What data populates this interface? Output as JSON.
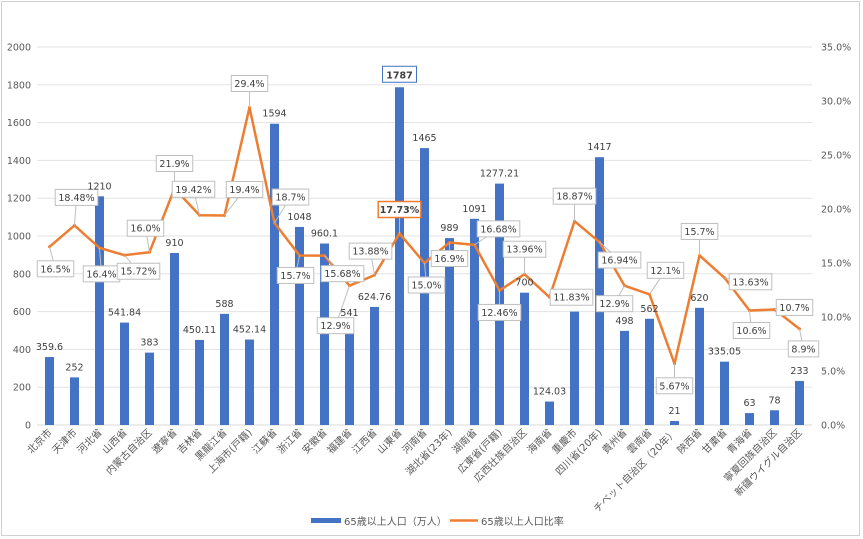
{
  "chart_data": {
    "type": "bar+line",
    "categories": [
      "北京市",
      "天津市",
      "河北省",
      "山西省",
      "内蒙古自治区",
      "遼寧省",
      "吉林省",
      "黒龍江省",
      "上海市(戸籍)",
      "江蘇省",
      "浙江省",
      "安徽省",
      "福建省",
      "江西省",
      "山東省",
      "河南省",
      "湖北省(23年)",
      "湖南省",
      "広東省(戸籍)",
      "広西壮族自治区",
      "海南省",
      "重慶市",
      "四川省(20年)",
      "貴州省",
      "雲南省",
      "チベット自治区（20年）",
      "陝西省",
      "甘粛省",
      "青海省",
      "寧夏回族自治区",
      "新疆ウイグル自治区"
    ],
    "series": [
      {
        "name": "65歳以上人口（万人）",
        "type": "bar",
        "axis": "left",
        "color": "#4472C4",
        "values": [
          359.6,
          252,
          1210,
          541.84,
          383,
          910,
          450.11,
          588,
          452.14,
          1594,
          1048,
          960.1,
          541,
          624.76,
          1787,
          1465,
          989,
          1091,
          1277.21,
          700,
          124.03,
          600,
          1417,
          498,
          562,
          21,
          620,
          335.05,
          63,
          78,
          233
        ],
        "labels": [
          "359.6",
          "252",
          "1210",
          "541.84",
          "383",
          "910",
          "450.11",
          "588",
          "452.14",
          "1594",
          "1048",
          "960.1",
          "541",
          "624.76",
          "1787",
          "1465",
          "989",
          "1091",
          "1277.21",
          "700",
          "124.03",
          null,
          "1417",
          "498",
          "562",
          "21",
          "620",
          "335.05",
          "63",
          "78",
          "233"
        ]
      },
      {
        "name": "65歳以上人口比率",
        "type": "line",
        "axis": "right",
        "color": "#ED7D31",
        "values": [
          16.5,
          18.48,
          16.4,
          15.72,
          16.0,
          21.9,
          19.42,
          19.4,
          29.4,
          18.7,
          15.7,
          15.68,
          12.9,
          13.88,
          17.73,
          15.0,
          16.9,
          16.68,
          12.46,
          13.96,
          11.83,
          18.87,
          16.94,
          12.9,
          12.1,
          5.67,
          15.7,
          13.63,
          10.6,
          10.7,
          8.9
        ],
        "labels": [
          "16.5%",
          "18.48%",
          "16.4%",
          "15.72%",
          "16.0%",
          "21.9%",
          "19.42%",
          "19.4%",
          "29.4%",
          "18.7%",
          "15.7%",
          "15.68%",
          "12.9%",
          "13.88%",
          "17.73%",
          "15.0%",
          "16.9%",
          "16.68%",
          "12.46%",
          "13.96%",
          "11.83%",
          "18.87%",
          "16.94%",
          "12.9%",
          "12.1%",
          "5.67%",
          "15.7%",
          "13.63%",
          "10.6%",
          "10.7%",
          "8.9%"
        ]
      }
    ],
    "left_axis": {
      "range": [
        0,
        2000
      ],
      "ticks": [
        "0",
        "200",
        "400",
        "600",
        "800",
        "1000",
        "1200",
        "1400",
        "1600",
        "1800",
        "2000"
      ]
    },
    "right_axis": {
      "range": [
        0,
        35
      ],
      "ticks": [
        "0.0%",
        "5.0%",
        "10.0%",
        "15.0%",
        "20.0%",
        "25.0%",
        "30.0%",
        "35.0%"
      ]
    },
    "grid": true,
    "legend_position": "bottom",
    "highlighted": {
      "bar_label": "1787",
      "line_label": "17.73%"
    }
  }
}
